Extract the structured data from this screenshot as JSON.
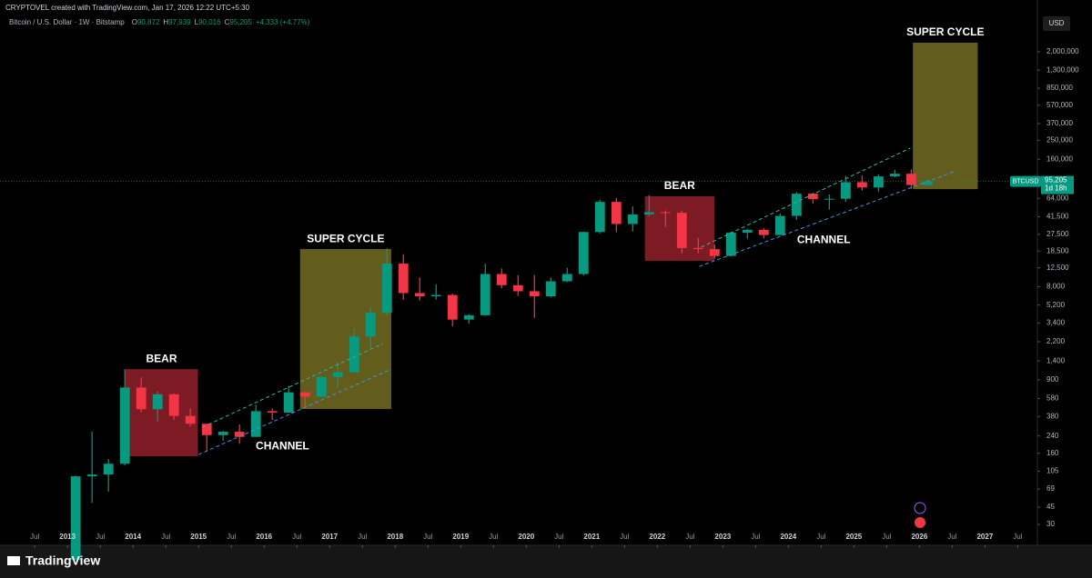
{
  "header": {
    "credit": "CRYPTOVEL created with TradingView.com, Jan 17, 2026 12:22 UTC+5:30",
    "symbol": "Bitcoin / U.S. Dollar · 1W · Bitstamp",
    "ohlc": [
      {
        "key": "O",
        "value": "90,872"
      },
      {
        "key": "H",
        "value": "97,939"
      },
      {
        "key": "L",
        "value": "90,016"
      },
      {
        "key": "C",
        "value": "95,205"
      }
    ],
    "change": "+4,333 (+4.77%)"
  },
  "footer": {
    "brand": "TradingView"
  },
  "chart_data": {
    "type": "candlestick",
    "currency": "USD",
    "log_scale": true,
    "up_color": "#089981",
    "down_color": "#f23645",
    "x": [
      2013,
      2013.25,
      2013.5,
      2013.75,
      2014,
      2014.25,
      2014.5,
      2014.75,
      2015,
      2015.25,
      2015.5,
      2015.75,
      2016,
      2016.25,
      2016.5,
      2016.75,
      2017,
      2017.25,
      2017.5,
      2017.75,
      2018,
      2018.25,
      2018.5,
      2018.75,
      2019,
      2019.25,
      2019.5,
      2019.75,
      2020,
      2020.25,
      2020.5,
      2020.75,
      2021,
      2021.25,
      2021.5,
      2021.75,
      2022,
      2022.25,
      2022.5,
      2022.75,
      2023,
      2023.25,
      2023.5,
      2023.75,
      2024,
      2024.25,
      2024.5,
      2024.75,
      2025,
      2025.25,
      2025.5,
      2025.75,
      2026
    ],
    "open": [
      13,
      93,
      97,
      125,
      750,
      450,
      640,
      385,
      320,
      245,
      265,
      235,
      430,
      415,
      670,
      605,
      960,
      1070,
      2490,
      4340,
      13800,
      6900,
      6390,
      6600,
      3700,
      4100,
      10800,
      8300,
      7200,
      6400,
      9100,
      10800,
      29000,
      58800,
      35000,
      43800,
      46200,
      45500,
      19900,
      19400,
      16500,
      28500,
      30500,
      27000,
      42300,
      71300,
      62700,
      63300,
      93400,
      82500,
      107000,
      114000,
      87500
    ],
    "high": [
      95,
      266,
      140,
      1150,
      950,
      680,
      650,
      460,
      320,
      270,
      315,
      500,
      460,
      780,
      680,
      980,
      1350,
      2990,
      4980,
      19700,
      17200,
      9950,
      8500,
      6800,
      4200,
      13800,
      12300,
      10500,
      10500,
      10000,
      12500,
      29300,
      61800,
      64900,
      52900,
      69000,
      48200,
      47500,
      25200,
      21500,
      29200,
      31400,
      31800,
      44700,
      73800,
      72800,
      70000,
      108300,
      109500,
      112000,
      124500,
      126000,
      97939
    ],
    "low": [
      13,
      50,
      65,
      120,
      420,
      340,
      350,
      300,
      170,
      215,
      200,
      235,
      350,
      415,
      470,
      600,
      750,
      1070,
      1830,
      4100,
      5900,
      5800,
      5900,
      3150,
      3350,
      4050,
      7700,
      6450,
      3850,
      6200,
      8900,
      10400,
      28000,
      28800,
      29300,
      42000,
      32900,
      17600,
      17600,
      15500,
      16500,
      24800,
      24900,
      26900,
      38500,
      56500,
      49000,
      58900,
      76600,
      74500,
      105000,
      80600,
      86000
    ],
    "close": [
      93,
      97,
      125,
      750,
      450,
      640,
      385,
      320,
      245,
      265,
      235,
      430,
      415,
      670,
      605,
      960,
      1070,
      2490,
      4340,
      13800,
      6900,
      6390,
      6600,
      3700,
      4100,
      10800,
      8300,
      7200,
      6400,
      9100,
      10800,
      29000,
      58800,
      35000,
      43800,
      46200,
      45500,
      19900,
      19400,
      16500,
      28500,
      30500,
      27000,
      42300,
      71300,
      62700,
      63300,
      93400,
      82500,
      107000,
      114000,
      87500,
      95205
    ],
    "period": 0.25,
    "xlim": [
      2011.97,
      2027.8
    ],
    "ylim": [
      18.4,
      6760000
    ],
    "xticks": [
      {
        "value": 2012.5,
        "label": "Jul"
      },
      2013,
      {
        "value": 2013.5,
        "label": "Jul"
      },
      2014,
      {
        "value": 2014.5,
        "label": "Jul"
      },
      2015,
      {
        "value": 2015.5,
        "label": "Jul"
      },
      2016,
      {
        "value": 2016.5,
        "label": "Jul"
      },
      2017,
      {
        "value": 2017.5,
        "label": "Jul"
      },
      2018,
      {
        "value": 2018.5,
        "label": "Jul"
      },
      2019,
      {
        "value": 2019.5,
        "label": "Jul"
      },
      2020,
      {
        "value": 2020.5,
        "label": "Jul"
      },
      2021,
      {
        "value": 2021.5,
        "label": "Jul"
      },
      2022,
      {
        "value": 2022.5,
        "label": "Jul"
      },
      2023,
      {
        "value": 2023.5,
        "label": "Jul"
      },
      2024,
      {
        "value": 2024.5,
        "label": "Jul"
      },
      2025,
      {
        "value": 2025.5,
        "label": "Jul"
      },
      2026,
      {
        "value": 2026.5,
        "label": "Jul"
      },
      2027,
      {
        "value": 2027.5,
        "label": "Jul"
      }
    ],
    "yticks": [
      30,
      45,
      69,
      105,
      160,
      240,
      380,
      580,
      900,
      {
        "value": 1400,
        "label": "1,400"
      },
      {
        "value": 2200,
        "label": "2,200"
      },
      {
        "value": 3400,
        "label": "3,400"
      },
      {
        "value": 5200,
        "label": "5,200"
      },
      {
        "value": 8000,
        "label": "8,000"
      },
      {
        "value": 12500,
        "label": "12,500"
      },
      {
        "value": 18500,
        "label": "18,500"
      },
      {
        "value": 27500,
        "label": "27,500"
      },
      {
        "value": 41500,
        "label": "41,500"
      },
      {
        "value": 64000,
        "label": "64,000"
      },
      {
        "value": 160000,
        "label": "160,000"
      },
      {
        "value": 250000,
        "label": "250,000"
      },
      {
        "value": 370000,
        "label": "370,000"
      },
      {
        "value": 570000,
        "label": "570,000"
      },
      {
        "value": 850000,
        "label": "850,000"
      },
      {
        "value": 1300000,
        "label": "1,300,000"
      },
      {
        "value": 2000000,
        "label": "2,000,000"
      }
    ],
    "last_price": {
      "symbol": "BTCUSD",
      "value": 95205,
      "label": "95,205",
      "countdown": "1d 18h"
    },
    "boxes": [
      {
        "label": "BEAR",
        "x": [
          2013.88,
          2014.99
        ],
        "price": [
          149,
          1155
        ],
        "color": "#8b1e28"
      },
      {
        "label": "SUPER CYCLE",
        "x": [
          2016.55,
          2017.94
        ],
        "price": [
          452,
          19400
        ],
        "color": "#6e6720"
      },
      {
        "label": "BEAR",
        "x": [
          2021.81,
          2022.87
        ],
        "price": [
          14700,
          67000
        ],
        "color": "#8b1e28"
      },
      {
        "label": "SUPER CYCLE",
        "x": [
          2025.9,
          2026.89
        ],
        "price": [
          79400,
          2480000
        ],
        "color": "#6e6720"
      }
    ],
    "channels": [
      {
        "label": "CHANNEL",
        "label_x": 2016.28,
        "label_price": 188,
        "upper": {
          "x": [
            2015.06,
            2017.81
          ],
          "price": [
            295,
            2100
          ],
          "color": "#2bb5a0"
        },
        "lower": {
          "x": [
            2015.0,
            2017.94
          ],
          "price": [
            155,
            1155
          ],
          "color": "#4a90d9"
        }
      },
      {
        "label": "CHANNEL",
        "label_x": 2024.54,
        "label_price": 24000,
        "upper": {
          "x": [
            2022.67,
            2025.86
          ],
          "price": [
            20300,
            208000
          ],
          "color": "#2bb5a0"
        },
        "lower": {
          "x": [
            2022.64,
            2026.56
          ],
          "price": [
            12900,
            122000
          ],
          "color": "#4a90d9"
        }
      }
    ]
  }
}
